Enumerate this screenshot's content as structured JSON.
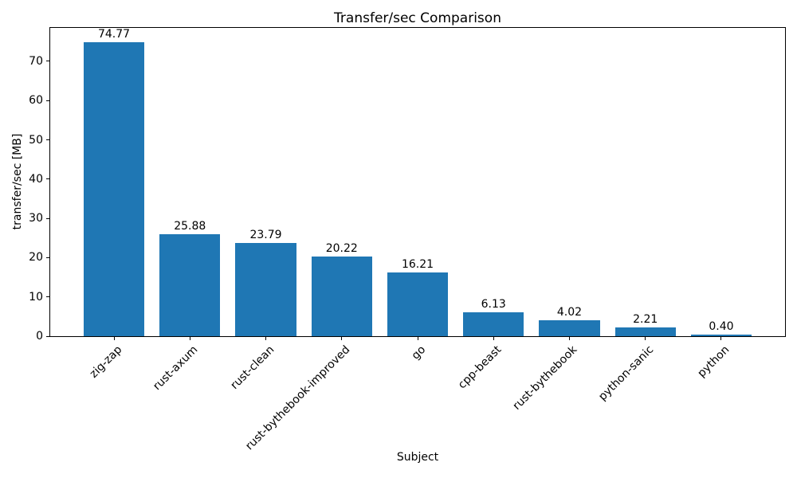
{
  "chart_data": {
    "type": "bar",
    "title": "Transfer/sec Comparison",
    "xlabel": "Subject",
    "ylabel": "transfer/sec [MB]",
    "categories": [
      "zig-zap",
      "rust-axum",
      "rust-clean",
      "rust-bythebook-improved",
      "go",
      "cpp-beast",
      "rust-bythebook",
      "python-sanic",
      "python"
    ],
    "values": [
      74.77,
      25.88,
      23.79,
      20.22,
      16.21,
      6.13,
      4.02,
      2.21,
      0.4
    ],
    "value_labels": [
      "74.77",
      "25.88",
      "23.79",
      "20.22",
      "16.21",
      "6.13",
      "4.02",
      "2.21",
      "0.40"
    ],
    "y_ticks": [
      0,
      10,
      20,
      30,
      40,
      50,
      60,
      70
    ],
    "ylim": [
      0,
      78.5
    ],
    "bar_color": "#1f77b4",
    "grid": false,
    "legend_position": "none",
    "x_tick_rotation_deg": 45
  }
}
